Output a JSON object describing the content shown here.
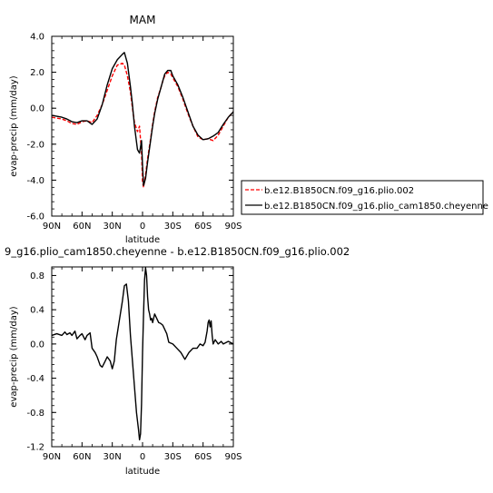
{
  "chart_data": [
    {
      "type": "line",
      "title": "MAM",
      "xlabel": "latitude",
      "ylabel": "evap-precip (mm/day)",
      "xlim": [
        90,
        -90
      ],
      "ylim": [
        -6.0,
        4.0
      ],
      "x_ticks": [
        90,
        60,
        30,
        0,
        -30,
        -60,
        -90
      ],
      "x_tick_labels": [
        "90N",
        "60N",
        "30N",
        "0",
        "30S",
        "60S",
        "90S"
      ],
      "y_ticks": [
        4.0,
        2.0,
        0.0,
        -2.0,
        -4.0,
        -6.0
      ],
      "y_tick_labels": [
        "4.0",
        "2.0",
        "0.0",
        "-2.0",
        "-4.0",
        "-6.0"
      ],
      "grid": false,
      "legend_position": "right",
      "x": [
        90,
        85,
        80,
        75,
        70,
        65,
        60,
        55,
        50,
        45,
        40,
        35,
        30,
        25,
        20,
        18,
        15,
        12,
        10,
        8,
        5,
        3,
        1,
        0,
        -1,
        -3,
        -5,
        -8,
        -10,
        -12,
        -15,
        -18,
        -20,
        -22,
        -25,
        -28,
        -30,
        -35,
        -40,
        -45,
        -50,
        -55,
        -60,
        -65,
        -70,
        -75,
        -80,
        -85,
        -90
      ],
      "series": [
        {
          "name": "b.e12.B1850CN.f09_g16.plio.002",
          "color": "#ff0000",
          "dash": "dashed",
          "values": [
            -0.5,
            -0.55,
            -0.6,
            -0.7,
            -0.85,
            -0.9,
            -0.75,
            -0.7,
            -0.8,
            -0.4,
            0.2,
            1.0,
            1.8,
            2.4,
            2.5,
            2.4,
            1.8,
            0.9,
            0.0,
            -0.8,
            -1.3,
            -1.0,
            -2.5,
            -4.1,
            -4.4,
            -3.7,
            -2.8,
            -1.7,
            -0.9,
            -0.2,
            0.6,
            1.1,
            1.5,
            1.8,
            2.0,
            1.9,
            1.7,
            1.2,
            0.5,
            -0.3,
            -1.0,
            -1.6,
            -1.75,
            -1.7,
            -1.8,
            -1.5,
            -1.0,
            -0.5,
            -0.2
          ]
        },
        {
          "name": "b.e12.B1850CN.f09_g16.plio_cam1850.cheyenne",
          "color": "#000000",
          "dash": "solid",
          "values": [
            -0.4,
            -0.45,
            -0.5,
            -0.6,
            -0.75,
            -0.8,
            -0.7,
            -0.7,
            -0.9,
            -0.6,
            0.2,
            1.3,
            2.2,
            2.7,
            3.0,
            3.1,
            2.5,
            1.2,
            0.2,
            -1.0,
            -2.3,
            -2.5,
            -1.8,
            -3.2,
            -4.3,
            -3.9,
            -3.0,
            -1.8,
            -1.0,
            -0.3,
            0.5,
            1.1,
            1.5,
            1.9,
            2.1,
            2.1,
            1.8,
            1.3,
            0.6,
            -0.2,
            -1.0,
            -1.5,
            -1.75,
            -1.7,
            -1.55,
            -1.35,
            -0.9,
            -0.5,
            -0.2
          ]
        }
      ]
    },
    {
      "type": "line",
      "title": "9_g16.plio_cam1850.cheyenne - b.e12.B1850CN.f09_g16.plio.002",
      "xlabel": "latitude",
      "ylabel": "evap-precip (mm/day)",
      "xlim": [
        90,
        -90
      ],
      "ylim": [
        -1.2,
        0.9
      ],
      "x_ticks": [
        90,
        60,
        30,
        0,
        -30,
        -60,
        -90
      ],
      "x_tick_labels": [
        "90N",
        "60N",
        "30N",
        "0",
        "30S",
        "60S",
        "90S"
      ],
      "y_ticks": [
        0.8,
        0.4,
        0.0,
        -0.4,
        -0.8,
        -1.2
      ],
      "y_tick_labels": [
        "0.8",
        "0.4",
        "0.0",
        "-0.4",
        "-0.8",
        "-1.2"
      ],
      "grid": false,
      "x": [
        90,
        85,
        80,
        77,
        75,
        72,
        70,
        67,
        65,
        62,
        60,
        57,
        55,
        52,
        50,
        47,
        45,
        42,
        40,
        37,
        35,
        32,
        30,
        28,
        26,
        24,
        22,
        20,
        18,
        16,
        14,
        12,
        10,
        8,
        6,
        4,
        3,
        2,
        1,
        0,
        -1,
        -2,
        -3,
        -4,
        -5,
        -6,
        -7,
        -8,
        -9,
        -10,
        -12,
        -14,
        -16,
        -18,
        -20,
        -24,
        -26,
        -30,
        -34,
        -38,
        -42,
        -46,
        -50,
        -54,
        -57,
        -60,
        -62,
        -64,
        -65,
        -66,
        -67,
        -68,
        -69,
        -70,
        -72,
        -75,
        -78,
        -80,
        -85,
        -90
      ],
      "series": [
        {
          "name": "",
          "color": "#000000",
          "dash": "solid",
          "values": [
            0.1,
            0.12,
            0.1,
            0.14,
            0.11,
            0.13,
            0.1,
            0.15,
            0.06,
            0.1,
            0.12,
            0.05,
            0.1,
            0.13,
            -0.05,
            -0.1,
            -0.15,
            -0.25,
            -0.27,
            -0.2,
            -0.15,
            -0.2,
            -0.29,
            -0.2,
            0.05,
            0.2,
            0.35,
            0.5,
            0.68,
            0.7,
            0.5,
            0.1,
            -0.2,
            -0.5,
            -0.8,
            -1.0,
            -1.12,
            -1.05,
            -0.7,
            -0.1,
            0.35,
            0.75,
            0.89,
            0.8,
            0.55,
            0.4,
            0.35,
            0.28,
            0.3,
            0.25,
            0.35,
            0.3,
            0.25,
            0.24,
            0.22,
            0.12,
            0.02,
            0.0,
            -0.05,
            -0.1,
            -0.18,
            -0.1,
            -0.05,
            -0.05,
            0.0,
            -0.02,
            0.02,
            0.15,
            0.25,
            0.28,
            0.2,
            0.27,
            0.1,
            0.0,
            0.05,
            0.0,
            0.03,
            0.0,
            0.03,
            0.0
          ]
        }
      ]
    }
  ]
}
